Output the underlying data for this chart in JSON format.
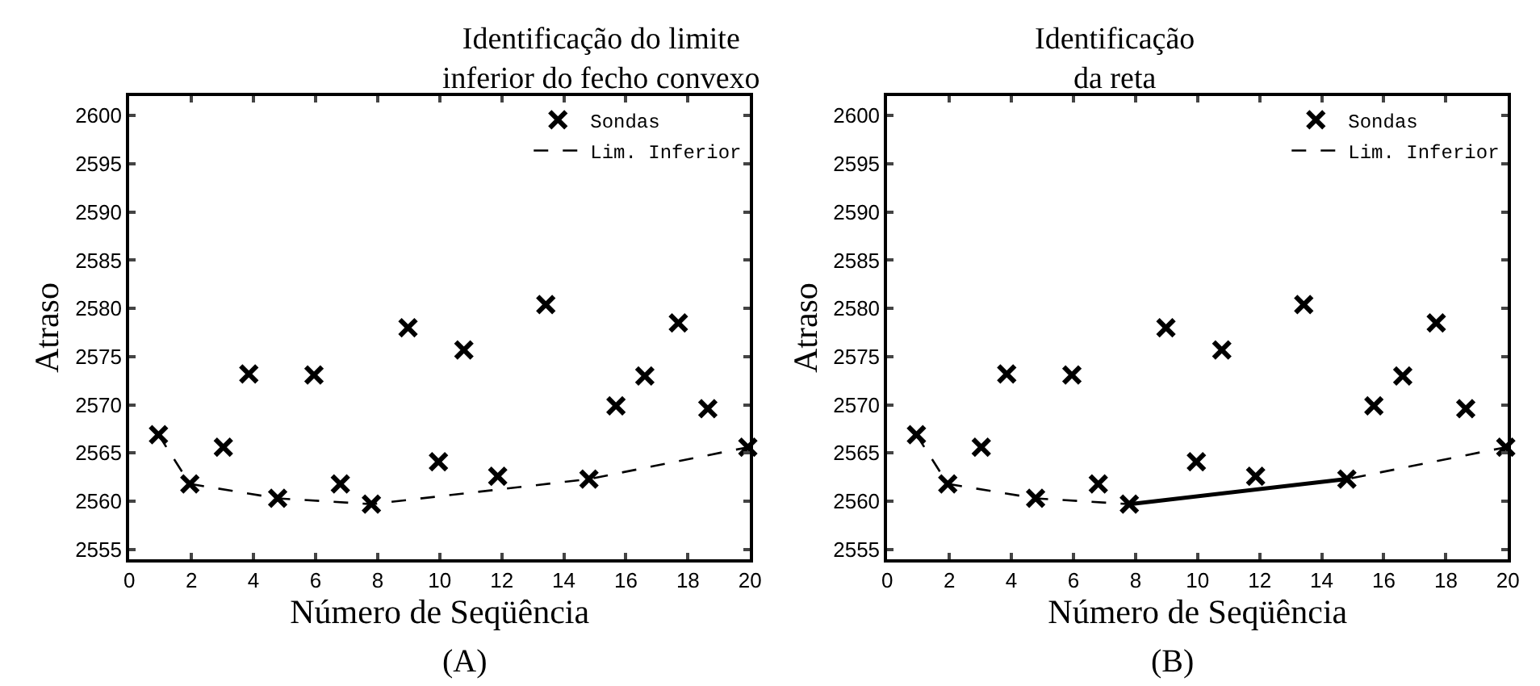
{
  "chart_data": [
    {
      "type": "scatter",
      "title": "Identificação do limite\ninferior do fecho convexo",
      "xlabel": "Número de Seqüência",
      "ylabel": "Atraso",
      "annotations": [
        "(A)"
      ],
      "xlim": [
        0,
        20
      ],
      "ylim": [
        2554,
        2602
      ],
      "xticks": [
        0,
        2,
        4,
        6,
        8,
        10,
        12,
        14,
        16,
        18,
        20
      ],
      "yticks": [
        2555,
        2560,
        2565,
        2570,
        2575,
        2580,
        2585,
        2590,
        2595,
        2600
      ],
      "legend": "top right",
      "series": [
        {
          "name": "Sondas",
          "marker": "cross",
          "color": "#000000",
          "x": [
            0.94,
            1.95,
            3.03,
            3.85,
            4.78,
            5.95,
            6.8,
            7.8,
            8.98,
            9.96,
            10.78,
            11.87,
            13.42,
            14.81,
            15.68,
            16.61,
            17.69,
            18.64,
            19.93
          ],
          "values": [
            2566.9,
            2561.8,
            2565.6,
            2573.2,
            2560.3,
            2573.1,
            2561.8,
            2559.7,
            2578.0,
            2564.1,
            2575.7,
            2562.6,
            2580.4,
            2562.3,
            2569.9,
            2573.0,
            2578.5,
            2569.6,
            2565.6
          ]
        },
        {
          "name": "Lim. Inferior",
          "type": "line",
          "marker": "none",
          "line_style": "dashed",
          "color": "#000000",
          "x": [
            0.94,
            1.95,
            4.78,
            7.8,
            14.81,
            19.93
          ],
          "values": [
            2566.9,
            2561.8,
            2560.3,
            2559.7,
            2562.3,
            2565.6
          ]
        }
      ]
    },
    {
      "type": "scatter",
      "title": "Identificação\nda reta",
      "xlabel": "Número de Seqüência",
      "ylabel": "Atraso",
      "annotations": [
        "(B)"
      ],
      "xlim": [
        0,
        20
      ],
      "ylim": [
        2554,
        2602
      ],
      "xticks": [
        0,
        2,
        4,
        6,
        8,
        10,
        12,
        14,
        16,
        18,
        20
      ],
      "yticks": [
        2555,
        2560,
        2565,
        2570,
        2575,
        2580,
        2585,
        2590,
        2595,
        2600
      ],
      "legend": "top right",
      "series": [
        {
          "name": "Sondas",
          "marker": "cross",
          "color": "#000000",
          "x": [
            0.94,
            1.95,
            3.03,
            3.85,
            4.78,
            5.95,
            6.8,
            7.8,
            8.98,
            9.96,
            10.78,
            11.87,
            13.42,
            14.81,
            15.68,
            16.61,
            17.69,
            18.64,
            19.93
          ],
          "values": [
            2566.9,
            2561.8,
            2565.6,
            2573.2,
            2560.3,
            2573.1,
            2561.8,
            2559.7,
            2578.0,
            2564.1,
            2575.7,
            2562.6,
            2580.4,
            2562.3,
            2569.9,
            2573.0,
            2578.5,
            2569.6,
            2565.6
          ]
        },
        {
          "name": "Lim. Inferior",
          "type": "line",
          "marker": "none",
          "line_style": "dashed",
          "color": "#000000",
          "x": [
            0.94,
            1.95,
            4.78,
            7.8,
            14.81,
            19.93
          ],
          "values": [
            2566.9,
            2561.8,
            2560.3,
            2559.7,
            2562.3,
            2565.6
          ]
        },
        {
          "type": "line",
          "marker": "none",
          "line_style": "solid",
          "color": "#000000",
          "x": [
            7.8,
            14.81
          ],
          "values": [
            2559.7,
            2562.3
          ]
        }
      ]
    }
  ]
}
